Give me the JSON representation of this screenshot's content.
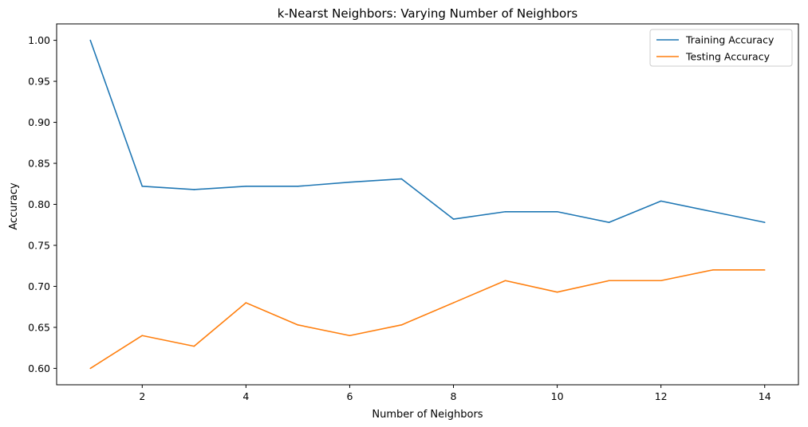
{
  "chart_data": {
    "type": "line",
    "title": "k-Nearst Neighbors: Varying Number of Neighbors",
    "xlabel": "Number of Neighbors",
    "ylabel": "Accuracy",
    "xlim": [
      0.35,
      14.65
    ],
    "ylim": [
      0.58,
      1.02
    ],
    "xticks": [
      2,
      4,
      6,
      8,
      10,
      12,
      14
    ],
    "xtick_labels": [
      "2",
      "4",
      "6",
      "8",
      "10",
      "12",
      "14"
    ],
    "yticks": [
      0.6,
      0.65,
      0.7,
      0.75,
      0.8,
      0.85,
      0.9,
      0.95,
      1.0
    ],
    "ytick_labels": [
      "0.60",
      "0.65",
      "0.70",
      "0.75",
      "0.80",
      "0.85",
      "0.90",
      "0.95",
      "1.00"
    ],
    "grid": false,
    "legend_position": "top-right",
    "x": [
      1,
      2,
      3,
      4,
      5,
      6,
      7,
      8,
      9,
      10,
      11,
      12,
      13,
      14
    ],
    "series": [
      {
        "name": "Training Accuracy",
        "color": "#1f77b4",
        "values": [
          1.0,
          0.822,
          0.818,
          0.822,
          0.822,
          0.827,
          0.831,
          0.782,
          0.791,
          0.791,
          0.778,
          0.804,
          0.791,
          0.778
        ]
      },
      {
        "name": "Testing Accuracy",
        "color": "#ff7f0e",
        "values": [
          0.6,
          0.64,
          0.627,
          0.68,
          0.653,
          0.64,
          0.653,
          0.68,
          0.707,
          0.693,
          0.707,
          0.707,
          0.72,
          0.72
        ]
      }
    ]
  }
}
